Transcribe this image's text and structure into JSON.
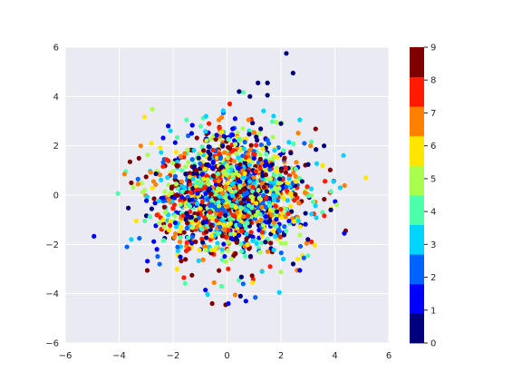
{
  "chart_data": {
    "type": "scatter",
    "title": "",
    "xlabel": "",
    "ylabel": "",
    "xlim": [
      -6,
      6
    ],
    "ylim": [
      -6,
      6
    ],
    "xticks": [
      -6,
      -4,
      -2,
      0,
      2,
      4,
      6
    ],
    "yticks": [
      -6,
      -4,
      -2,
      0,
      2,
      4,
      6
    ],
    "grid": true,
    "background": "#eaeaf2",
    "grid_color": "#ffffff",
    "colormap": "jet",
    "color_levels": 10,
    "colorbar": {
      "range": [
        0,
        9
      ],
      "ticks": [
        0,
        1,
        2,
        3,
        4,
        5,
        6,
        7,
        8,
        9
      ],
      "colors": [
        "#00007f",
        "#0000ff",
        "#0063ff",
        "#00d4ff",
        "#4effa9",
        "#a9ff4e",
        "#ffe500",
        "#ff7f00",
        "#ff1a00",
        "#7f0000"
      ]
    },
    "points": [
      {
        "x": 2.2,
        "y": 5.75,
        "c": 0
      },
      {
        "x": 2.45,
        "y": 4.95,
        "c": 0
      },
      {
        "x": 1.15,
        "y": 4.55,
        "c": 0
      },
      {
        "x": 1.5,
        "y": 4.55,
        "c": 0
      },
      {
        "x": 0.45,
        "y": 4.2,
        "c": 0
      },
      {
        "x": 0.85,
        "y": 4.0,
        "c": 0
      },
      {
        "x": 1.5,
        "y": 4.05,
        "c": 0
      },
      {
        "x": 0.1,
        "y": 3.7,
        "c": 8
      },
      {
        "x": -0.3,
        "y": 3.05,
        "c": 7
      },
      {
        "x": -0.2,
        "y": 3.15,
        "c": 7
      },
      {
        "x": 0.8,
        "y": 3.05,
        "c": 7
      },
      {
        "x": -1.5,
        "y": 3.05,
        "c": 4
      },
      {
        "x": 2.7,
        "y": 3.05,
        "c": 3
      },
      {
        "x": 0.3,
        "y": 3.1,
        "c": 1
      },
      {
        "x": 2.0,
        "y": 2.9,
        "c": 0
      },
      {
        "x": 5.15,
        "y": 0.7,
        "c": 6
      },
      {
        "x": 4.2,
        "y": 0.3,
        "c": 3
      },
      {
        "x": 3.95,
        "y": 0.55,
        "c": 3
      },
      {
        "x": 3.85,
        "y": 0.15,
        "c": 4
      },
      {
        "x": 3.85,
        "y": -0.55,
        "c": 6
      },
      {
        "x": 3.85,
        "y": -0.6,
        "c": 0
      },
      {
        "x": 3.6,
        "y": 2.0,
        "c": 0
      },
      {
        "x": 3.55,
        "y": 1.2,
        "c": 6
      },
      {
        "x": 3.3,
        "y": 1.85,
        "c": 0
      },
      {
        "x": 3.1,
        "y": 2.0,
        "c": 7
      },
      {
        "x": 4.4,
        "y": -1.45,
        "c": 9
      },
      {
        "x": 4.35,
        "y": -1.55,
        "c": 1
      },
      {
        "x": 3.0,
        "y": -1.8,
        "c": 0
      },
      {
        "x": 2.8,
        "y": -2.45,
        "c": 6
      },
      {
        "x": 2.85,
        "y": -2.55,
        "c": 2
      },
      {
        "x": 2.6,
        "y": -3.05,
        "c": 7
      },
      {
        "x": 2.7,
        "y": -3.05,
        "c": 1
      },
      {
        "x": -3.8,
        "y": 0.85,
        "c": 7
      },
      {
        "x": -3.6,
        "y": 1.35,
        "c": 9
      },
      {
        "x": -3.55,
        "y": 0.5,
        "c": 9
      },
      {
        "x": -3.3,
        "y": 0.45,
        "c": 7
      },
      {
        "x": -3.2,
        "y": 2.0,
        "c": 7
      },
      {
        "x": -3.55,
        "y": -1.8,
        "c": 3
      },
      {
        "x": -3.25,
        "y": -1.75,
        "c": 2
      },
      {
        "x": -3.05,
        "y": -1.05,
        "c": 4
      },
      {
        "x": -2.6,
        "y": -2.2,
        "c": 1
      },
      {
        "x": -2.5,
        "y": -2.8,
        "c": 2
      },
      {
        "x": -1.85,
        "y": -3.0,
        "c": 6
      },
      {
        "x": -1.6,
        "y": -3.35,
        "c": 8
      },
      {
        "x": -1.3,
        "y": -3.25,
        "c": 9
      },
      {
        "x": -0.8,
        "y": -3.85,
        "c": 1
      },
      {
        "x": -0.55,
        "y": -4.4,
        "c": 9
      },
      {
        "x": -0.05,
        "y": -4.45,
        "c": 9
      },
      {
        "x": 0.05,
        "y": -4.4,
        "c": 1
      },
      {
        "x": 0.3,
        "y": -4.05,
        "c": 7
      },
      {
        "x": 0.5,
        "y": -4.1,
        "c": 0
      },
      {
        "x": 0.7,
        "y": -4.3,
        "c": 1
      },
      {
        "x": 1.05,
        "y": -4.15,
        "c": 2
      },
      {
        "x": 0.95,
        "y": -3.55,
        "c": 6
      },
      {
        "x": 1.6,
        "y": -2.9,
        "c": 8
      },
      {
        "x": -0.2,
        "y": -3.7,
        "c": 4
      },
      {
        "x": 0.6,
        "y": -3.6,
        "c": 2
      },
      {
        "x": 1.3,
        "y": -3.1,
        "c": 3
      }
    ],
    "cluster": {
      "n": 1700,
      "mean": [
        0.2,
        0.0
      ],
      "std": [
        1.35,
        1.25
      ],
      "seed": 7
    }
  }
}
